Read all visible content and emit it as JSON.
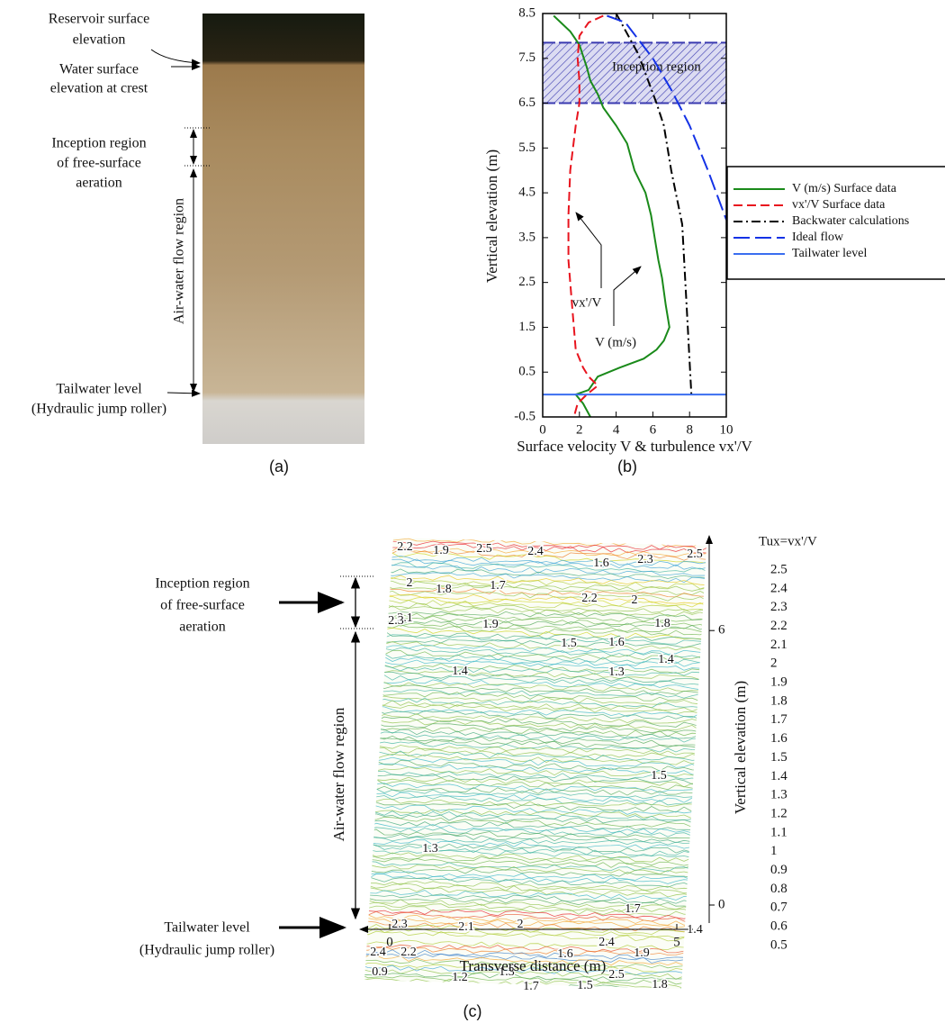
{
  "photo_panel": {
    "reservoir_label": [
      "Reservoir surface",
      "elevation"
    ],
    "crest_label": [
      "Water surface",
      "elevation at crest"
    ],
    "inception_label": [
      "Inception region",
      "of free-surface",
      "aeration"
    ],
    "airwater_label": "Air-water flow region",
    "tailwater_label": [
      "Tailwater level",
      "(Hydraulic jump roller)"
    ],
    "caption": "(a)"
  },
  "chart_data": {
    "type": "line",
    "xlabel": "Surface velocity V & turbulence vx'/V",
    "ylabel": "Vertical elevation (m)",
    "xlim": [
      0,
      10
    ],
    "xticks": [
      0,
      2,
      4,
      6,
      8,
      10
    ],
    "ylim": [
      -0.5,
      8.5
    ],
    "yticks": [
      -0.5,
      0.5,
      1.5,
      2.5,
      3.5,
      4.5,
      5.5,
      6.5,
      7.5,
      8.5
    ],
    "inception_band": [
      6.5,
      7.85
    ],
    "inception_text": "Inception region",
    "annotations": [
      "vx'/V",
      "V (m/s)"
    ],
    "caption": "(b)",
    "series": [
      {
        "name": "V (m/s) Surface data",
        "color": "#1a8a1a",
        "dash": "solid",
        "x": [
          0.6,
          1.5,
          2.0,
          2.4,
          2.6,
          3.0,
          3.3,
          4.0,
          4.6,
          5.0,
          5.6,
          5.9,
          6.1,
          6.3,
          6.5,
          6.7,
          6.9,
          6.6,
          6.2,
          5.5,
          4.2,
          3.0,
          2.5,
          1.8,
          2.2,
          2.6
        ],
        "y": [
          8.45,
          8.1,
          7.8,
          7.3,
          7.0,
          6.7,
          6.4,
          6.0,
          5.6,
          5.0,
          4.5,
          4.0,
          3.5,
          3.0,
          2.6,
          2.0,
          1.5,
          1.2,
          1.0,
          0.8,
          0.6,
          0.4,
          0.1,
          0.0,
          -0.2,
          -0.5
        ]
      },
      {
        "name": "vx'/V Surface data",
        "color": "#e8141e",
        "dash": "dashed",
        "x": [
          3.3,
          2.5,
          2.0,
          1.9,
          2.0,
          2.0,
          1.8,
          1.5,
          1.4,
          1.4,
          1.6,
          1.8,
          2.2,
          2.5,
          3.0,
          2.4,
          1.9,
          1.7
        ],
        "y": [
          8.45,
          8.3,
          8.0,
          7.5,
          7.0,
          6.5,
          6.0,
          5.0,
          4.0,
          3.0,
          2.0,
          1.0,
          0.6,
          0.4,
          0.2,
          0.0,
          -0.2,
          -0.5
        ]
      },
      {
        "name": "Backwater calculations",
        "color": "#000000",
        "dash": "dashdot",
        "x": [
          4.0,
          5.2,
          6.2,
          6.6,
          7.0,
          7.6,
          7.9,
          8.1
        ],
        "y": [
          8.5,
          7.6,
          6.5,
          6.0,
          5.0,
          3.8,
          1.5,
          0.0
        ]
      },
      {
        "name": "Ideal flow",
        "color": "#1432e6",
        "dash": "longdash",
        "x": [
          3.5,
          4.5,
          6.0,
          7.0,
          8.0,
          9.0,
          10.0
        ],
        "y": [
          8.45,
          8.3,
          7.5,
          6.8,
          6.0,
          5.0,
          3.9
        ]
      },
      {
        "name": "Tailwater level",
        "color": "#3a6ef0",
        "dash": "solid",
        "x": [
          0,
          10
        ],
        "y": [
          0,
          0
        ]
      }
    ]
  },
  "contour_panel": {
    "inception_label": [
      "Inception region",
      "of free-surface",
      "aeration"
    ],
    "airwater_label": "Air-water flow region",
    "tailwater_label": [
      "Tailwater level",
      "(Hydraulic jump roller)"
    ],
    "xlabel": "Transverse distance (m)",
    "xticks": [
      0,
      5
    ],
    "ylabel": "Vertical elevation (m)",
    "yticks": [
      6,
      0
    ],
    "colorbar_title": "Tux=vx'/V",
    "levels": [
      2.5,
      2.4,
      2.3,
      2.2,
      2.1,
      2,
      1.9,
      1.8,
      1.7,
      1.6,
      1.5,
      1.4,
      1.3,
      1.2,
      1.1,
      1,
      0.9,
      0.8,
      0.7,
      0.6,
      0.5
    ],
    "level_colors": [
      "#e8202a",
      "#e84a26",
      "#ef7d2a",
      "#f4a630",
      "#e8c81d",
      "#cdd41e",
      "#b0cc3a",
      "#8fc24a",
      "#6db64e",
      "#52a85a",
      "#3fa77a",
      "#3db3a0",
      "#3ab7c8",
      "#3aa3d6",
      "#3a7dc8",
      "#3a5ab4",
      "#3e4aa0",
      "#5a4aa0",
      "#7a4a9e",
      "#984a9a",
      "#b04a96"
    ],
    "contour_labels": [
      2.2,
      1.9,
      2.5,
      2.4,
      1.6,
      2.3,
      2.5,
      2,
      1.8,
      1.7,
      2.2,
      2,
      2.1,
      2.3,
      1.9,
      1.5,
      1.6,
      1.8,
      1.4,
      1.3,
      1.4,
      1.5,
      1.3,
      1.7,
      2.3,
      2.1,
      2,
      2.4,
      2.2,
      1.6,
      2.4,
      1.9,
      1.4,
      0.9,
      1.2,
      1.3,
      1.7,
      1.5,
      2.5,
      1.8
    ],
    "caption": "(c)"
  }
}
